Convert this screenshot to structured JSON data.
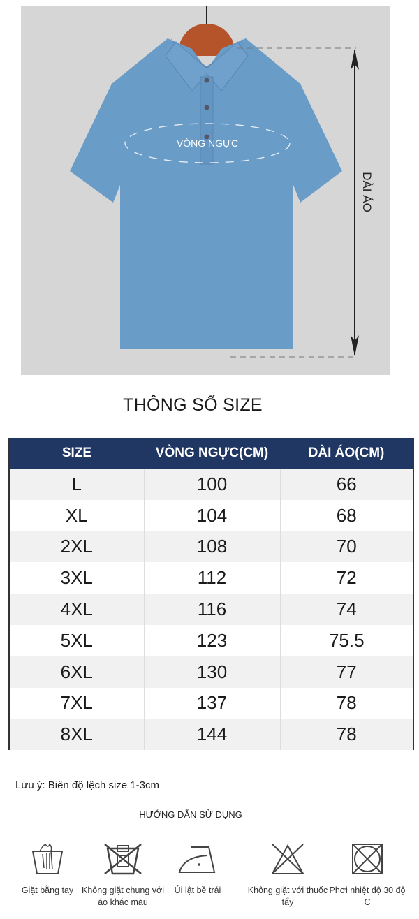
{
  "hero": {
    "chest_label": "VÒNG NGỰC",
    "length_label": "DÀI ÁO",
    "background_color": "#d6d6d6",
    "shirt_color": "#6a9cc8"
  },
  "title": "THÔNG SỐ SIZE",
  "table": {
    "header_color": "#213763",
    "columns": [
      "SIZE",
      "VÒNG NGỰC(CM)",
      "DÀI ÁO(CM)"
    ],
    "rows": [
      [
        "L",
        "100",
        "66"
      ],
      [
        "XL",
        "104",
        "68"
      ],
      [
        "2XL",
        "108",
        "70"
      ],
      [
        "3XL",
        "112",
        "72"
      ],
      [
        "4XL",
        "116",
        "74"
      ],
      [
        "5XL",
        "123",
        "75.5"
      ],
      [
        "6XL",
        "130",
        "77"
      ],
      [
        "7XL",
        "137",
        "78"
      ],
      [
        "8XL",
        "144",
        "78"
      ]
    ]
  },
  "note": "Lưu ý:  Biên độ lệch size 1-3cm",
  "guide_title": "HƯỚNG DẪN SỬ DỤNG",
  "care": [
    {
      "icon": "hand-wash-icon",
      "label": "Giặt bằng tay"
    },
    {
      "icon": "no-wash-with-colors-icon",
      "label": "Không giặt chung với áo khác màu"
    },
    {
      "icon": "iron-icon",
      "label": "Ủi lật bề trái"
    },
    {
      "icon": "no-bleach-icon",
      "label": "Không giặt với thuốc tẩy"
    },
    {
      "icon": "dry-temp-icon",
      "label": "Phơi nhiệt độ 30 độ C"
    }
  ]
}
